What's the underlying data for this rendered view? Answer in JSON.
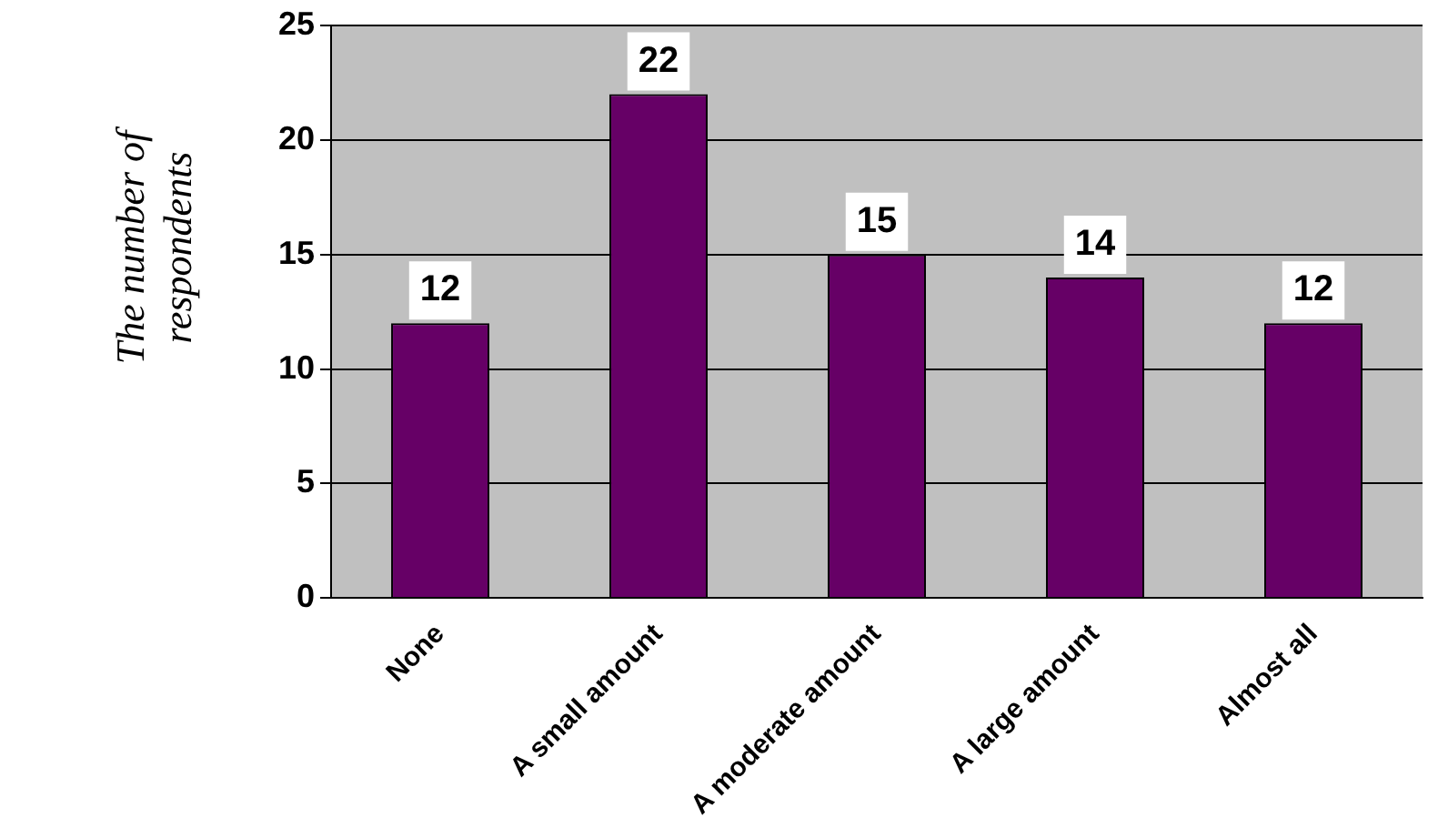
{
  "chart_data": {
    "type": "bar",
    "ylabel": "The number of respondents",
    "categories": [
      "None",
      "A small amount",
      "A moderate amount",
      "A large amount",
      "Almost all"
    ],
    "values": [
      12,
      22,
      15,
      14,
      12
    ],
    "color": "#660066",
    "ylim": [
      0,
      25
    ],
    "yticks": [
      0,
      5,
      10,
      15,
      20,
      25
    ],
    "grid": "y",
    "data_labels": true,
    "legend": false
  }
}
